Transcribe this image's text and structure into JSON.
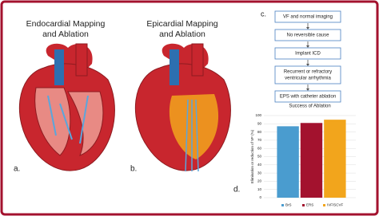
{
  "panels": [
    {
      "title_lines": [
        "Endocardial Mapping",
        "and Ablation"
      ],
      "label": "a."
    },
    {
      "title_lines": [
        "Epicardial Mapping",
        "and Ablation"
      ],
      "label": "b."
    }
  ],
  "flowchart": {
    "label": "c.",
    "nodes": [
      {
        "lines": [
          "VF and normal imaging"
        ]
      },
      {
        "lines": [
          "No reversible cause"
        ]
      },
      {
        "lines": [
          "Implant ICD"
        ]
      },
      {
        "lines": [
          "Recurrent or refractory",
          "ventricular arrhythmia"
        ]
      },
      {
        "lines": [
          "EPS with catheter ablation"
        ]
      }
    ]
  },
  "chart_label": "d.",
  "chart_data": {
    "type": "bar",
    "title": "Success of Ablation",
    "y_label": "Elimination or reduction of VF (%)",
    "categories": [
      null
    ],
    "series": [
      {
        "name": "BrS",
        "color": "#4a9ccf",
        "values": [
          87
        ]
      },
      {
        "name": "ERS",
        "color": "#a3122e",
        "values": [
          91
        ]
      },
      {
        "name": "IVF/SCVF",
        "color": "#f2a51c",
        "values": [
          95
        ]
      }
    ],
    "ylim": [
      0,
      100
    ],
    "yticks": [
      0,
      10,
      20,
      30,
      40,
      50,
      60,
      70,
      80,
      90,
      100
    ],
    "grid": true,
    "legend": "bottom"
  }
}
